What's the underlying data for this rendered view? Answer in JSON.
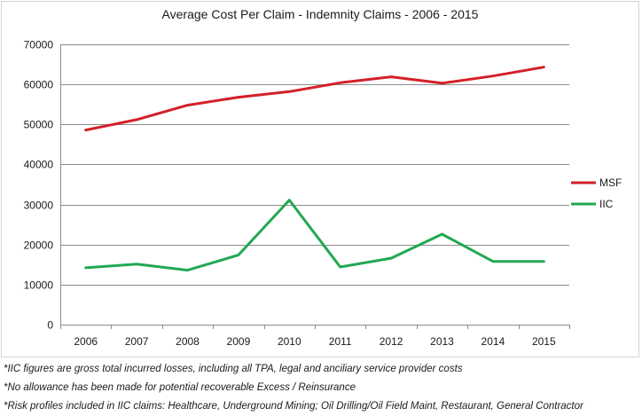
{
  "chart_data": {
    "type": "line",
    "title": "Average Cost Per Claim - Indemnity Claims - 2006 - 2015",
    "xlabel": "",
    "ylabel": "",
    "categories": [
      "2006",
      "2007",
      "2008",
      "2009",
      "2010",
      "2011",
      "2012",
      "2013",
      "2014",
      "2015"
    ],
    "ylim": [
      0,
      70000
    ],
    "yticks": [
      0,
      10000,
      20000,
      30000,
      40000,
      50000,
      60000,
      70000
    ],
    "grid": true,
    "legend_position": "right",
    "series": [
      {
        "name": "MSF",
        "color": "#d42027",
        "values": [
          48600,
          51200,
          54800,
          56800,
          58200,
          60400,
          61900,
          60300,
          62100,
          64300
        ]
      },
      {
        "name": "IIC",
        "color": "#22a852",
        "values": [
          14200,
          15100,
          13600,
          17400,
          31100,
          14400,
          16600,
          22600,
          15800,
          15800
        ]
      }
    ]
  },
  "footnotes": [
    "*IIC figures are gross total incurred losses, including all TPA, legal and anciliary service provider costs",
    "*No allowance has been made for potential recoverable Excess / Reinsurance",
    "*Risk profiles included in IIC claims: Healthcare, Underground Mining; Oil Drilling/Oil Field Maint, Restaurant, General Contractor"
  ]
}
